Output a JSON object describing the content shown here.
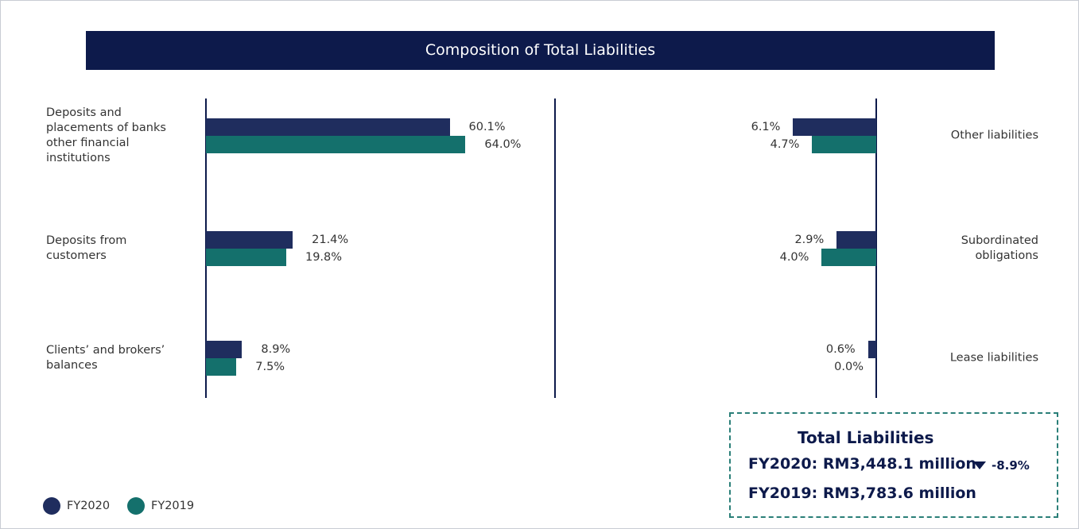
{
  "chart_data": [
    {
      "type": "bar",
      "orientation": "horizontal",
      "title": "Composition of Total Liabilities",
      "categories": [
        "Deposits and placements of banks other financial institutions",
        "Deposits from customers",
        "Clients’ and brokers’ balances"
      ],
      "series": [
        {
          "name": "FY2020",
          "color": "#1f2d5e",
          "values": [
            60.1,
            21.4,
            8.9
          ],
          "value_labels": [
            "60.1%",
            "21.4%",
            "8.9%"
          ]
        },
        {
          "name": "FY2019",
          "color": "#14706c",
          "values": [
            64.0,
            19.8,
            7.5
          ],
          "value_labels": [
            "64.0%",
            "19.8%",
            "7.5%"
          ]
        }
      ],
      "xlim": [
        0,
        70
      ]
    },
    {
      "type": "bar",
      "orientation": "horizontal",
      "direction": "left",
      "categories": [
        "Other liabilities",
        "Subordinated obligations",
        "Lease liabilities"
      ],
      "series": [
        {
          "color": "#1f2d5e",
          "values": [
            6.1,
            2.9,
            0.6
          ],
          "value_labels": [
            "6.1%",
            "2.9%",
            "0.6%"
          ]
        },
        {
          "color": "#14706c",
          "values": [
            4.7,
            4.0,
            0.0
          ],
          "value_labels": [
            "4.7%",
            "4.0%",
            "0.0%"
          ]
        }
      ],
      "xlim": [
        0,
        7
      ]
    }
  ],
  "summary": {
    "title": "Total Liabilities",
    "fy2020": "FY2020: RM3,448.1 million",
    "change": "-8.9%",
    "fy2019": "FY2019: RM3,783.6 million"
  }
}
